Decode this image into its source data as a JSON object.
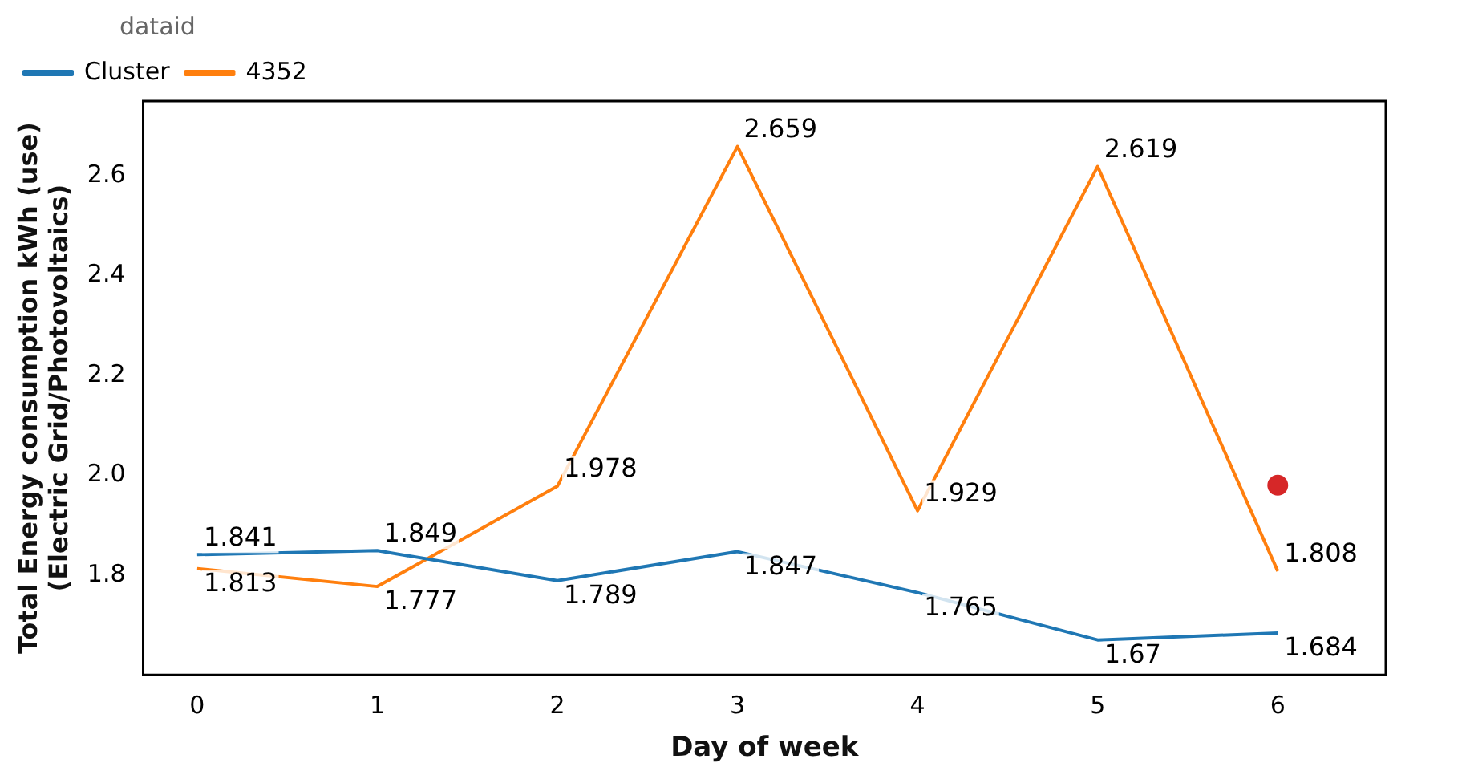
{
  "chart_data": {
    "type": "line",
    "xlabel": "Day of week",
    "ylabel": "Total Energy consumption kWh (use)\n(Electric Grid/Photovoltaics)",
    "legend_title": "dataid",
    "legend": "top left",
    "grid": false,
    "marker": "none",
    "line_style": "solid",
    "x": [
      0,
      1,
      2,
      3,
      4,
      5,
      6
    ],
    "xlim": [
      -0.3,
      6.6
    ],
    "xticks": [
      0,
      1,
      2,
      3,
      4,
      5,
      6
    ],
    "ylim": [
      1.6,
      2.75
    ],
    "yticks": [
      {
        "value": 1.8,
        "label": "1.8"
      },
      {
        "value": 2.0,
        "label": "2.0"
      },
      {
        "value": 2.2,
        "label": "2.2"
      },
      {
        "value": 2.4,
        "label": "2.4"
      },
      {
        "value": 2.6,
        "label": "2.6"
      }
    ],
    "series": [
      {
        "name": "Cluster",
        "color": "#1f77b4",
        "values": [
          1.841,
          1.849,
          1.789,
          1.847,
          1.765,
          1.67,
          1.684
        ],
        "value_labels": [
          "1.841",
          "1.849",
          "1.789",
          "1.847",
          "1.765",
          "1.67",
          "1.684"
        ]
      },
      {
        "name": "4352",
        "color": "#ff7f0e",
        "values": [
          1.813,
          1.777,
          1.978,
          2.659,
          1.929,
          2.619,
          1.808
        ],
        "value_labels": [
          "1.813",
          "1.777",
          "1.978",
          "2.659",
          "1.929",
          "2.619",
          "1.808"
        ]
      },
      {
        "type": "scatter",
        "color": "#d62728",
        "x": [
          6
        ],
        "values": [
          1.98
        ],
        "marker": "circle"
      }
    ]
  }
}
